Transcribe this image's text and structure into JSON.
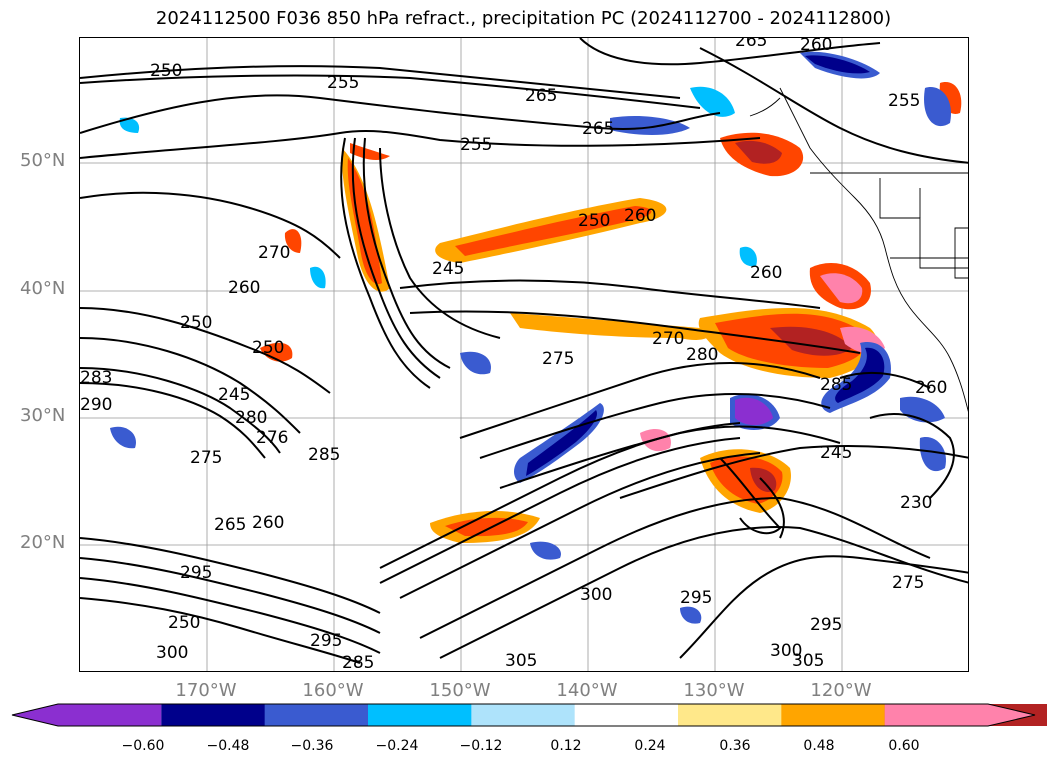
{
  "title": "2024112500 F036 850 hPa refract., precipitation PC (2024112700 - 2024112800)",
  "lat_labels": [
    "50°N",
    "40°N",
    "30°N",
    "20°N"
  ],
  "lon_labels": [
    "170°W",
    "160°W",
    "150°W",
    "140°W",
    "130°W",
    "120°W"
  ],
  "colorbar": {
    "ticks": [
      "−0.60",
      "−0.48",
      "−0.36",
      "−0.24",
      "−0.12",
      "0.12",
      "0.24",
      "0.36",
      "0.48",
      "0.60"
    ],
    "colors": [
      "#8b2fd0",
      "#00008b",
      "#3a5bd0",
      "#00bfff",
      "#aee3fb",
      "#ffffff",
      "#ffe88a",
      "#ffa500",
      "#ff4500",
      "#b22222",
      "#ff82ab"
    ]
  },
  "contour_labels": [
    "250",
    "255",
    "265",
    "265",
    "255",
    "265",
    "260",
    "255",
    "250",
    "260",
    "270",
    "245",
    "260",
    "275",
    "270",
    "280",
    "285",
    "260",
    "250",
    "250",
    "245",
    "283",
    "290",
    "280",
    "276",
    "275",
    "285",
    "265",
    "260",
    "295",
    "250",
    "300",
    "295",
    "285",
    "300",
    "305",
    "295",
    "300",
    "305",
    "275",
    "295",
    "245",
    "230",
    "260"
  ]
}
